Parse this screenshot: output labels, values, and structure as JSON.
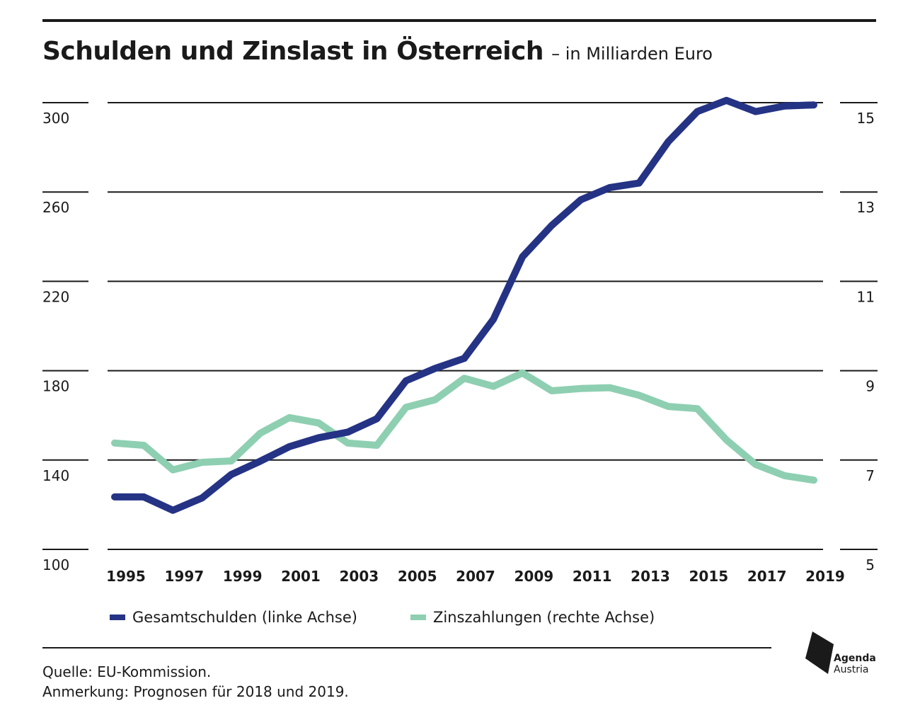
{
  "title": "Schulden und Zinslast in Österreich",
  "subtitle": "– in Milliarden Euro",
  "chart_data": {
    "type": "line",
    "x": [
      1995,
      1996,
      1997,
      1998,
      1999,
      2000,
      2001,
      2002,
      2003,
      2004,
      2005,
      2006,
      2007,
      2008,
      2009,
      2010,
      2011,
      2012,
      2013,
      2014,
      2015,
      2016,
      2017,
      2018,
      2019
    ],
    "x_tick_labels": [
      "1995",
      "1997",
      "1999",
      "2001",
      "2003",
      "2005",
      "2007",
      "2009",
      "2011",
      "2013",
      "2015",
      "2017",
      "2019"
    ],
    "y_left": {
      "lim": [
        100,
        300
      ],
      "tick_labels": [
        "300",
        "260",
        "220",
        "180",
        "140",
        "100"
      ],
      "ticks": [
        300,
        260,
        220,
        180,
        140,
        100
      ]
    },
    "y_right": {
      "lim": [
        5,
        15
      ],
      "tick_labels": [
        "15",
        "13",
        "11",
        "9",
        "7",
        "5"
      ],
      "ticks": [
        15,
        13,
        11,
        9,
        7,
        5
      ]
    },
    "grid": true,
    "legend_position": "bottom",
    "series": [
      {
        "name": "Gesamtschulden (linke Achse)",
        "axis": "left",
        "color": "#253385",
        "values": [
          123.5,
          123.5,
          117.5,
          123.0,
          133.5,
          139.5,
          146.0,
          150.0,
          152.5,
          158.5,
          175.5,
          181.0,
          185.5,
          203.0,
          231.0,
          245.0,
          256.5,
          262.0,
          264.0,
          282.5,
          296.0,
          301.0,
          296.0,
          298.5,
          299.0
        ]
      },
      {
        "name": "Zinszahlungen (rechte Achse)",
        "axis": "right",
        "color": "#8ecfb2",
        "values": [
          7.38,
          7.33,
          6.78,
          6.95,
          6.98,
          7.6,
          7.95,
          7.83,
          7.38,
          7.33,
          8.18,
          8.35,
          8.83,
          8.65,
          8.95,
          8.55,
          8.6,
          8.62,
          8.45,
          8.2,
          8.15,
          7.45,
          6.9,
          6.65,
          6.55
        ]
      }
    ]
  },
  "legend": {
    "items": [
      {
        "label": "Gesamtschulden (linke Achse)",
        "color": "#253385"
      },
      {
        "label": "Zinszahlungen (rechte Achse)",
        "color": "#8ecfb2"
      }
    ]
  },
  "footer": {
    "source": "Quelle: EU-Kommission.",
    "note": "Anmerkung: Prognosen für 2018 und 2019."
  },
  "logo": {
    "line1": "Agenda",
    "line2": "Austria"
  }
}
